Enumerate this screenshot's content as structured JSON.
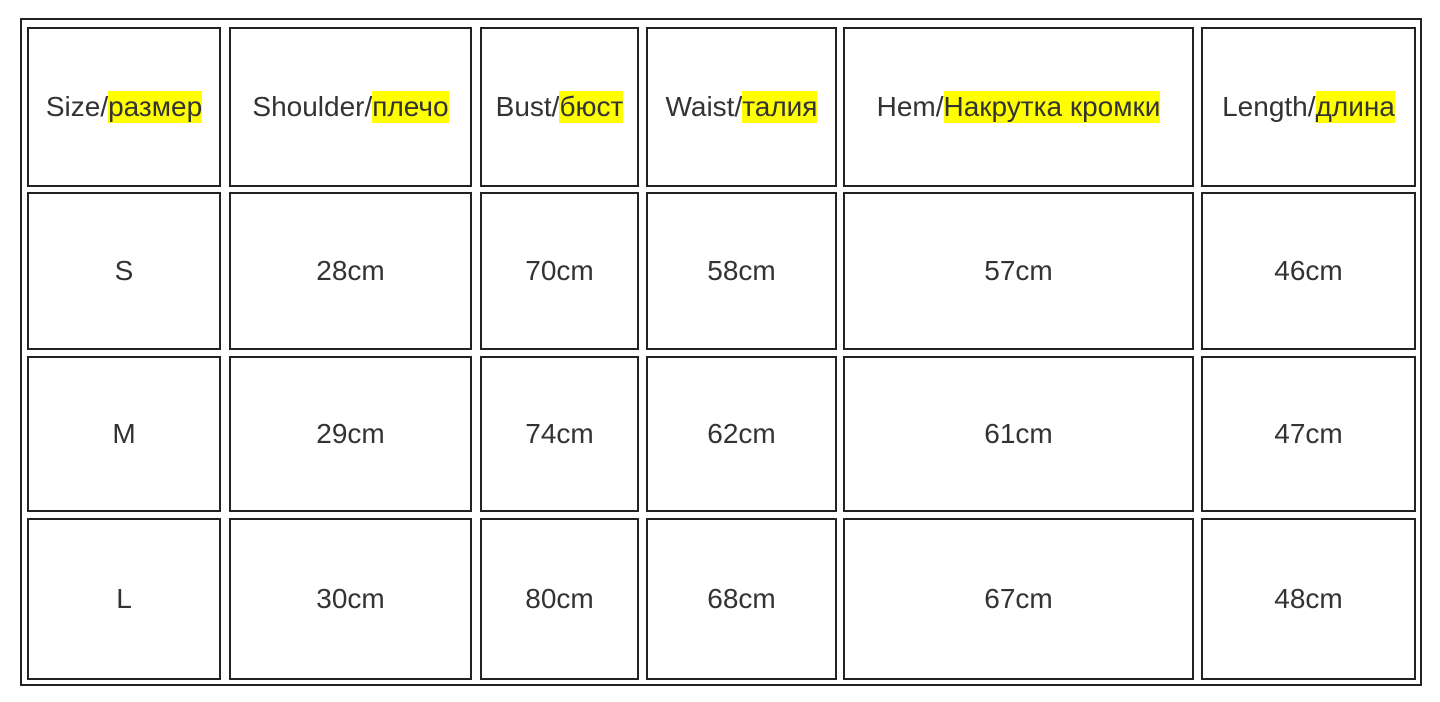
{
  "table": {
    "header": [
      {
        "label": "Size/",
        "translation": "размер"
      },
      {
        "label": "Shoulder/",
        "translation": "плечо"
      },
      {
        "label": "Bust/",
        "translation": "бюст"
      },
      {
        "label": "Waist/",
        "translation": "талия"
      },
      {
        "label": "Hem/",
        "translation": "Накрутка кромки"
      },
      {
        "label": "Length/",
        "translation": "длина"
      }
    ],
    "rows": [
      [
        "S",
        "28cm",
        "70cm",
        "58cm",
        "57cm",
        "46cm"
      ],
      [
        "M",
        "29cm",
        "74cm",
        "62cm",
        "61cm",
        "47cm"
      ],
      [
        "L",
        "30cm",
        "80cm",
        "68cm",
        "67cm",
        "48cm"
      ]
    ]
  }
}
